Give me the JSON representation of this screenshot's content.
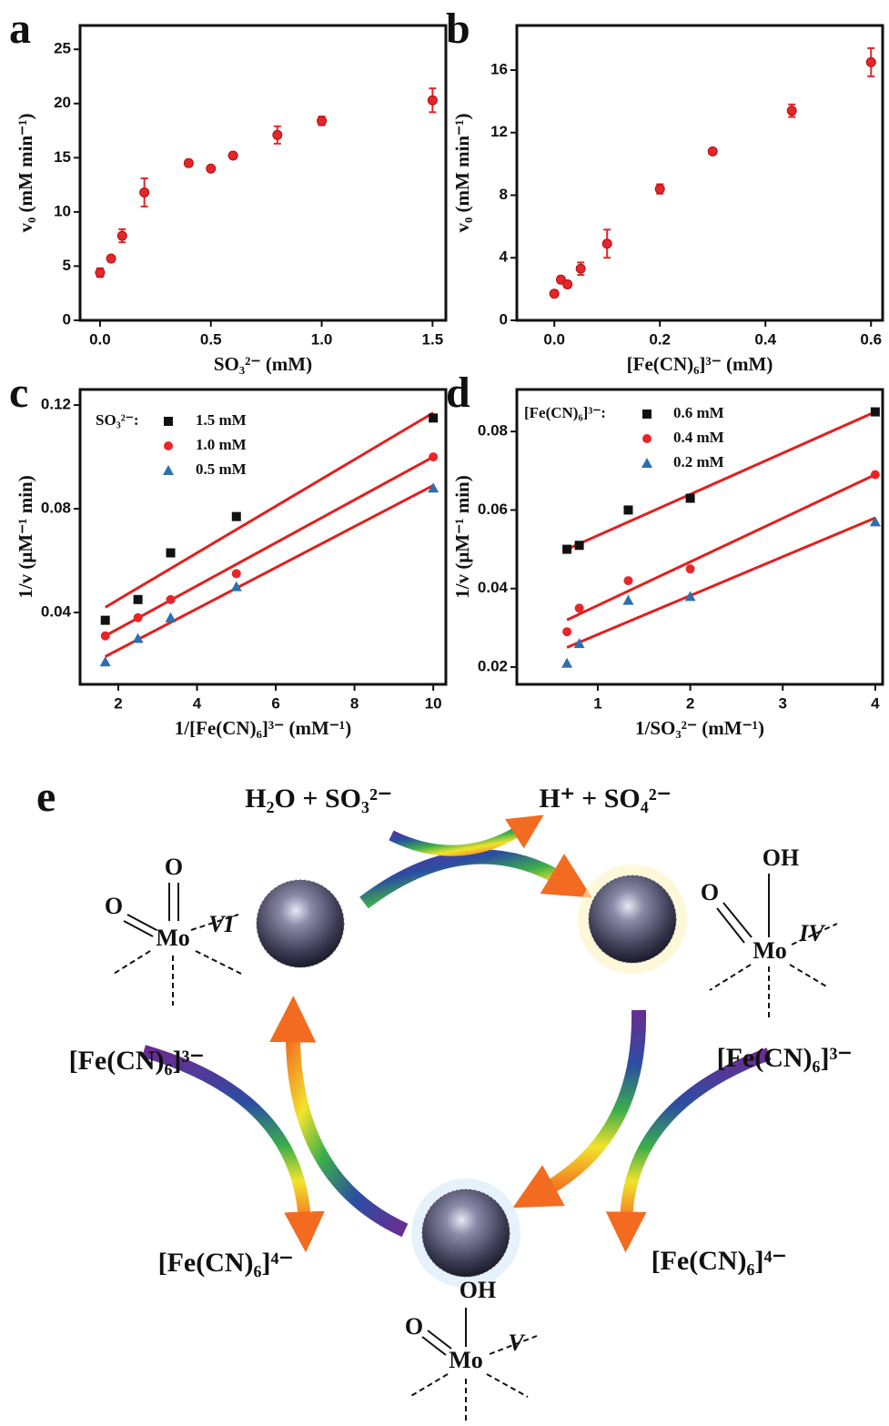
{
  "chart_data": [
    {
      "type": "scatter",
      "panel_label": "a",
      "x_label": "SO₃²⁻ (mM)",
      "y_label": "v₀ (mM min⁻¹)",
      "color": "#e3262b",
      "x": [
        0,
        0.05,
        0.1,
        0.2,
        0.4,
        0.5,
        0.6,
        0.8,
        1.0,
        1.5
      ],
      "values": [
        4.4,
        5.7,
        7.8,
        11.8,
        14.5,
        14.0,
        15.2,
        17.1,
        18.4,
        20.3
      ],
      "errors": [
        0.4,
        0.2,
        0.6,
        1.3,
        0.3,
        0.2,
        0.2,
        0.8,
        0.4,
        1.1
      ],
      "xlim": [
        -0.09,
        1.56
      ],
      "xticks": [
        {
          "value": 0,
          "label": "0.0"
        },
        {
          "value": 0.5,
          "label": "0.5"
        },
        {
          "value": 1,
          "label": "1.0"
        },
        {
          "value": 1.5,
          "label": "1.5"
        }
      ],
      "ylim": [
        0,
        27.2
      ],
      "yticks": [
        0,
        5,
        10,
        15,
        20,
        25
      ]
    },
    {
      "type": "scatter",
      "panel_label": "b",
      "x_label": "[Fe(CN)₆]³⁻ (mM)",
      "y_label": "v₀ (mM min⁻¹)",
      "color": "#e3262b",
      "x": [
        0,
        0.0125,
        0.025,
        0.05,
        0.1,
        0.2,
        0.3,
        0.45,
        0.6
      ],
      "values": [
        1.7,
        2.6,
        2.3,
        3.3,
        4.9,
        8.4,
        10.8,
        13.4,
        16.5
      ],
      "errors": [
        0.15,
        0.2,
        0.2,
        0.4,
        0.9,
        0.3,
        0.15,
        0.4,
        0.9
      ],
      "xlim": [
        -0.071,
        0.622
      ],
      "xticks": [
        {
          "value": 0,
          "label": "0.0"
        },
        0.2,
        0.4,
        0.6
      ],
      "ylim": [
        0,
        18.85
      ],
      "yticks": [
        0,
        4,
        8,
        12,
        16
      ]
    },
    {
      "type": "scatter",
      "panel_label": "c",
      "x_label": "1/[Fe(CN)₆]³⁻ (mM⁻¹)",
      "y_label": "1/v (μM⁻¹ min)",
      "legend_title": "SO₃²⁻:",
      "fit_color": "#e02020",
      "x": [
        1.67,
        2.5,
        3.33,
        5,
        10
      ],
      "series": [
        {
          "name": "1.5 mM",
          "color": "#111111",
          "marker": "square",
          "values": [
            0.037,
            0.045,
            0.063,
            0.077,
            0.115
          ],
          "fit_x": [
            1.67,
            10
          ],
          "fit": [
            0.042,
            0.117
          ]
        },
        {
          "name": "1.0 mM",
          "color": "#e8262a",
          "marker": "circle",
          "values": [
            0.031,
            0.038,
            0.045,
            0.055,
            0.1
          ],
          "fit_x": [
            1.67,
            10
          ],
          "fit": [
            0.031,
            0.1
          ]
        },
        {
          "name": "0.5 mM",
          "color": "#2e6fad",
          "marker": "triangle",
          "values": [
            0.021,
            0.03,
            0.038,
            0.05,
            0.088
          ],
          "fit_x": [
            1.67,
            10
          ],
          "fit": [
            0.023,
            0.089
          ]
        }
      ],
      "xlim": [
        1.03,
        10.32
      ],
      "xticks": [
        2,
        4,
        6,
        8,
        10
      ],
      "ylim": [
        0.0123,
        0.126
      ],
      "yticks": [
        0.04,
        0.08,
        0.12
      ]
    },
    {
      "type": "scatter",
      "panel_label": "d",
      "x_label": "1/SO₃²⁻ (mM⁻¹)",
      "y_label": "1/v (μM⁻¹ min)",
      "legend_title": "[Fe(CN)₆]³⁻:",
      "fit_color": "#e02020",
      "x": [
        0.667,
        0.8,
        1.33,
        2,
        4
      ],
      "series": [
        {
          "name": "0.6 mM",
          "color": "#111111",
          "marker": "square",
          "values": [
            0.05,
            0.051,
            0.06,
            0.063,
            0.085
          ],
          "fit_x": [
            0.667,
            4
          ],
          "fit": [
            0.05,
            0.085
          ]
        },
        {
          "name": "0.4 mM",
          "color": "#e8262a",
          "marker": "circle",
          "values": [
            0.029,
            0.035,
            0.042,
            0.045,
            0.069
          ],
          "fit_x": [
            0.667,
            4
          ],
          "fit": [
            0.032,
            0.069
          ]
        },
        {
          "name": "0.2 mM",
          "color": "#2e6fad",
          "marker": "triangle",
          "values": [
            0.021,
            0.026,
            0.037,
            0.038,
            0.057
          ],
          "fit_x": [
            0.667,
            4
          ],
          "fit": [
            0.025,
            0.058
          ]
        }
      ],
      "xlim": [
        0.125,
        4.08
      ],
      "xticks": [
        1,
        2,
        3,
        4
      ],
      "ylim": [
        0.0156,
        0.0907
      ],
      "yticks": [
        0.02,
        0.04,
        0.06,
        0.08
      ]
    }
  ],
  "diagram": {
    "panel_label": "e",
    "reactants": "H₂O + SO₃²⁻",
    "products": "H⁺ + SO₄²⁻",
    "ferricyanide_left": "[Fe(CN)₆]³⁻",
    "ferricyanide_right": "[Fe(CN)₆]³⁻",
    "ferrocyanide_left": "[Fe(CN)₆]⁴⁻",
    "ferrocyanide_right": "[Fe(CN)₆]⁴⁻",
    "mo_vi": {
      "top": "O",
      "side": "O",
      "center": "Mo",
      "state": "VI"
    },
    "mo_iv": {
      "top": "OH",
      "side": "O",
      "center": "Mo",
      "state": "IV"
    },
    "mo_v": {
      "top": "OH",
      "side": "O",
      "center": "Mo",
      "state": "V"
    }
  }
}
